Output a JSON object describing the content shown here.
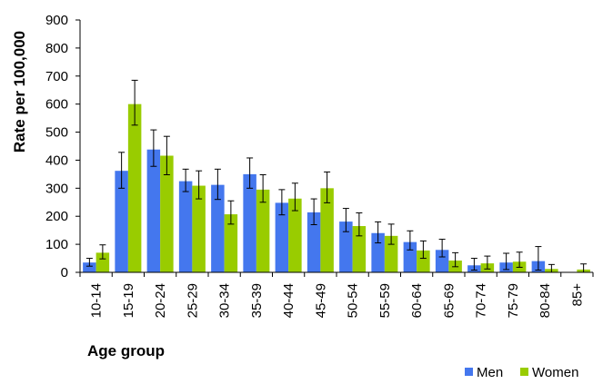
{
  "chart_data": {
    "type": "bar",
    "title": "",
    "xlabel": "Age group",
    "ylabel": "Rate per 100,000",
    "ylim": [
      0,
      900
    ],
    "yticks": [
      0,
      100,
      200,
      300,
      400,
      500,
      600,
      700,
      800,
      900
    ],
    "grid": false,
    "legend_position": "bottom-right",
    "error_bars": true,
    "categories": [
      "10-14",
      "15-19",
      "20-24",
      "25-29",
      "30-34",
      "35-39",
      "40-44",
      "45-49",
      "50-54",
      "55-59",
      "60-64",
      "65-69",
      "70-74",
      "75-79",
      "80-84",
      "85+"
    ],
    "series": [
      {
        "name": "Men",
        "color": "#4477ee",
        "values": [
          35,
          362,
          438,
          325,
          312,
          350,
          248,
          214,
          181,
          140,
          108,
          80,
          25,
          35,
          40,
          0
        ],
        "error_low": [
          22,
          300,
          378,
          288,
          260,
          300,
          205,
          170,
          145,
          105,
          80,
          55,
          8,
          10,
          8,
          0
        ],
        "error_high": [
          50,
          428,
          508,
          368,
          368,
          408,
          295,
          262,
          228,
          180,
          148,
          118,
          50,
          68,
          92,
          0
        ]
      },
      {
        "name": "Women",
        "color": "#99cc00",
        "values": [
          70,
          600,
          416,
          309,
          207,
          295,
          263,
          300,
          165,
          130,
          78,
          42,
          32,
          38,
          12,
          10
        ],
        "error_low": [
          48,
          525,
          348,
          262,
          172,
          250,
          220,
          248,
          130,
          100,
          50,
          20,
          12,
          18,
          0,
          0
        ],
        "error_high": [
          98,
          685,
          485,
          362,
          255,
          348,
          318,
          358,
          212,
          172,
          112,
          70,
          58,
          72,
          28,
          30
        ]
      }
    ]
  }
}
